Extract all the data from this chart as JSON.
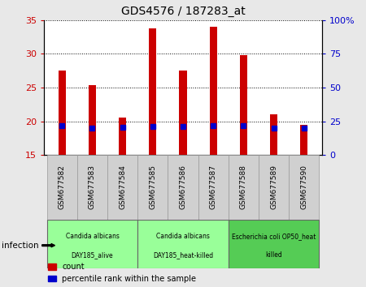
{
  "title": "GDS4576 / 187283_at",
  "samples": [
    "GSM677582",
    "GSM677583",
    "GSM677584",
    "GSM677585",
    "GSM677586",
    "GSM677587",
    "GSM677588",
    "GSM677589",
    "GSM677590"
  ],
  "counts": [
    27.5,
    25.3,
    20.5,
    33.8,
    27.5,
    34.0,
    29.8,
    21.0,
    19.5
  ],
  "percentiles": [
    22.0,
    20.0,
    20.5,
    21.0,
    21.0,
    21.5,
    21.5,
    20.0,
    20.0
  ],
  "ylim_left": [
    15,
    35
  ],
  "ylim_right": [
    0,
    100
  ],
  "yticks_left": [
    15,
    20,
    25,
    30,
    35
  ],
  "yticks_right": [
    0,
    25,
    50,
    75,
    100
  ],
  "ytick_labels_right": [
    "0",
    "25",
    "50",
    "75",
    "100%"
  ],
  "bar_color": "#cc0000",
  "percentile_color": "#0000cc",
  "bar_width": 0.25,
  "group_info": [
    {
      "start": 0,
      "end": 2,
      "label1": "Candida albicans",
      "label2": "DAY185_alive",
      "color": "#99ff99"
    },
    {
      "start": 3,
      "end": 5,
      "label1": "Candida albicans",
      "label2": "DAY185_heat-killed",
      "color": "#99ff99"
    },
    {
      "start": 6,
      "end": 8,
      "label1": "Escherichia coli OP50_heat",
      "label2": "killed",
      "color": "#55cc55"
    }
  ],
  "infection_label": "infection",
  "legend_count_label": "count",
  "legend_percentile_label": "percentile rank within the sample",
  "tick_label_color_left": "#cc0000",
  "tick_label_color_right": "#0000cc",
  "background_color": "#e8e8e8",
  "plot_bg_color": "#ffffff",
  "sample_box_color": "#d0d0d0"
}
